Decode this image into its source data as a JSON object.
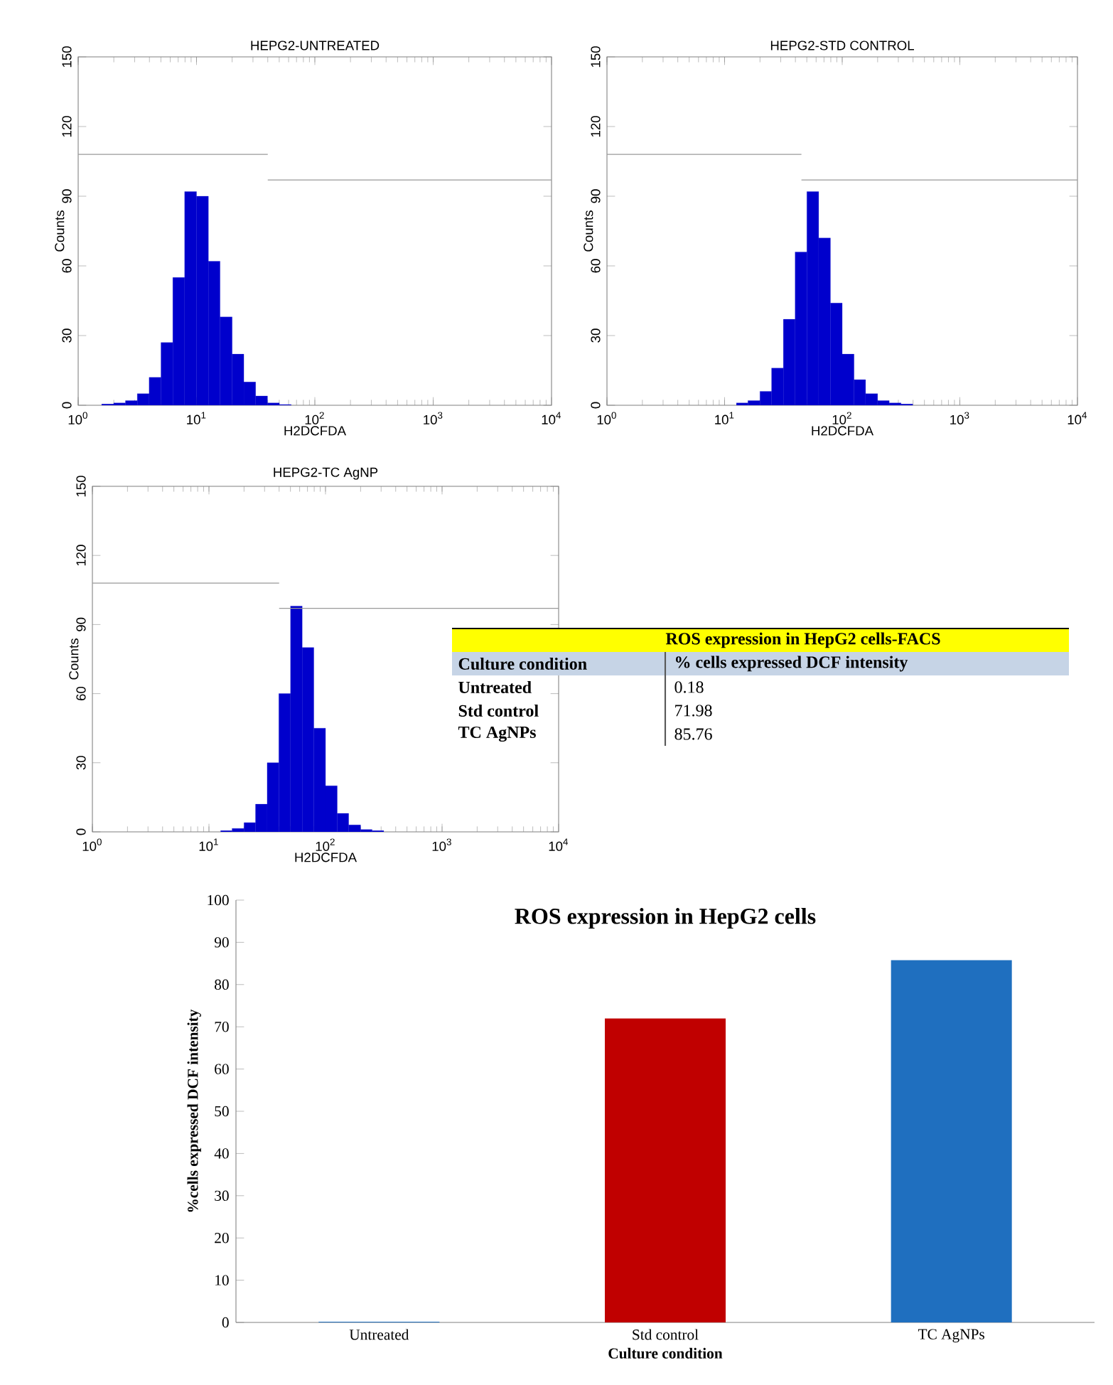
{
  "chart_data": [
    {
      "type": "histogram",
      "title": "HEPG2-UNTREATED",
      "xlabel": "H2DCFDA",
      "ylabel": "Counts",
      "log": "x",
      "xlim": [
        1,
        10000
      ],
      "xticks": [
        {
          "value": 1,
          "label": "10$^{0}$"
        },
        {
          "value": 10,
          "label": "10$^{1}$"
        },
        {
          "value": 100,
          "label": "10$^{2}$"
        },
        {
          "value": 1000,
          "label": "10$^{3}$"
        },
        {
          "value": 10000,
          "label": "10$^{4}$"
        }
      ],
      "ylim": [
        0,
        150
      ],
      "yticks": [
        0,
        30,
        60,
        90,
        120,
        150
      ],
      "series": [
        {
          "type": "histogram",
          "color": "#0000cc",
          "bins": [
            1.58,
            2.0,
            2.51,
            3.16,
            3.98,
            5.01,
            6.31,
            7.94,
            10,
            12.6,
            15.8,
            20.0,
            25.1,
            31.6,
            39.8,
            50.1,
            63.1
          ],
          "values": [
            0.5,
            1,
            2,
            5,
            12,
            27,
            55,
            92,
            90,
            62,
            38,
            22,
            10,
            4,
            1,
            0.3
          ]
        },
        {
          "type": "line",
          "color": "#999999",
          "x": [
            1,
            40
          ],
          "values": [
            108,
            108
          ]
        },
        {
          "type": "line",
          "color": "#999999",
          "x": [
            40,
            10000
          ],
          "values": [
            97,
            97
          ]
        }
      ]
    },
    {
      "type": "histogram",
      "title": "HEPG2-STD CONTROL",
      "xlabel": "H2DCFDA",
      "ylabel": "Counts",
      "log": "x",
      "xlim": [
        1,
        10000
      ],
      "xticks": [
        {
          "value": 1,
          "label": "10$^{0}$"
        },
        {
          "value": 10,
          "label": "10$^{1}$"
        },
        {
          "value": 100,
          "label": "10$^{2}$"
        },
        {
          "value": 1000,
          "label": "10$^{3}$"
        },
        {
          "value": 10000,
          "label": "10$^{4}$"
        }
      ],
      "ylim": [
        0,
        150
      ],
      "yticks": [
        0,
        30,
        60,
        90,
        120,
        150
      ],
      "series": [
        {
          "type": "histogram",
          "color": "#0000cc",
          "bins": [
            12.6,
            15.8,
            20.0,
            25.1,
            31.6,
            39.8,
            50.1,
            63.1,
            79.4,
            100,
            126,
            158,
            200,
            251,
            316,
            398
          ],
          "values": [
            1,
            2,
            6,
            16,
            37,
            66,
            92,
            72,
            44,
            22,
            11,
            5,
            2,
            1,
            0.5
          ]
        },
        {
          "type": "line",
          "color": "#999999",
          "x": [
            1,
            45
          ],
          "values": [
            108,
            108
          ]
        },
        {
          "type": "line",
          "color": "#999999",
          "x": [
            45,
            10000
          ],
          "values": [
            97,
            97
          ]
        }
      ]
    },
    {
      "type": "histogram",
      "title": "HEPG2-TC AgNP",
      "xlabel": "H2DCFDA",
      "ylabel": "Counts",
      "log": "x",
      "xlim": [
        1,
        10000
      ],
      "xticks": [
        {
          "value": 1,
          "label": "10$^{0}$"
        },
        {
          "value": 10,
          "label": "10$^{1}$"
        },
        {
          "value": 100,
          "label": "10$^{2}$"
        },
        {
          "value": 1000,
          "label": "10$^{3}$"
        },
        {
          "value": 10000,
          "label": "10$^{4}$"
        }
      ],
      "ylim": [
        0,
        150
      ],
      "yticks": [
        0,
        30,
        60,
        90,
        120,
        150
      ],
      "series": [
        {
          "type": "histogram",
          "color": "#0000cc",
          "bins": [
            12.6,
            15.8,
            20.0,
            25.1,
            31.6,
            39.8,
            50.1,
            63.1,
            79.4,
            100,
            126,
            158,
            200,
            251,
            316
          ],
          "values": [
            0.5,
            1.5,
            4,
            12,
            30,
            60,
            98,
            80,
            45,
            20,
            8,
            3,
            1,
            0.5
          ]
        },
        {
          "type": "line",
          "color": "#999999",
          "x": [
            1,
            40
          ],
          "values": [
            108,
            108
          ]
        },
        {
          "type": "line",
          "color": "#999999",
          "x": [
            40,
            10000
          ],
          "values": [
            97,
            97
          ]
        }
      ]
    },
    {
      "type": "other",
      "title": "ROS expression in HepG2 cells-FACS",
      "annotations": [
        "Culture condition",
        "% cells expressed DCF intensity",
        "Untreated",
        "0.18",
        "Std control",
        "71.98",
        "TC AgNPs",
        "85.76"
      ]
    },
    {
      "type": "bar",
      "title": "ROS expression in HepG2 cells",
      "xlabel": "Culture condition",
      "ylabel": "%cells expressed DCF intensity",
      "categories": [
        "Untreated",
        "Std control",
        "TC AgNPs"
      ],
      "values": [
        0.18,
        71.98,
        85.76
      ],
      "colors": [
        "#1f6fbf",
        "#c00000",
        "#1f6fbf"
      ],
      "ylim": [
        0,
        100
      ],
      "yticks": [
        0,
        10,
        20,
        30,
        40,
        50,
        60,
        70,
        80,
        90,
        100
      ]
    }
  ]
}
